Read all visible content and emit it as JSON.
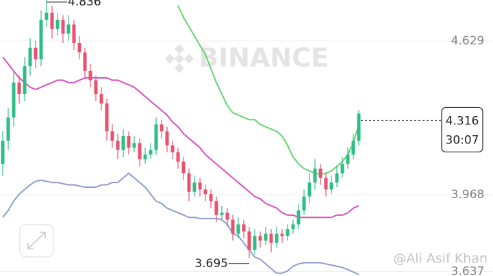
{
  "chart_data": {
    "type": "candlestick",
    "watermark": "BINANCE",
    "credit": "@Ali Asif Khan",
    "countdown": "30:07",
    "up_color": "#2ebd85",
    "down_color": "#e8526d",
    "ylim": [
      3.618,
      4.805
    ],
    "yticks": [
      4.629,
      3.968,
      3.637
    ],
    "grid": true,
    "open": [
      4.1,
      4.2,
      4.3,
      4.45,
      4.4,
      4.52,
      4.6,
      4.55,
      4.72,
      4.75,
      4.68,
      4.72,
      4.66,
      4.7,
      4.62,
      4.58,
      4.5,
      4.46,
      4.4,
      4.36,
      4.24,
      4.2,
      4.16,
      4.22,
      4.17,
      4.19,
      4.12,
      4.14,
      4.16,
      4.27,
      4.24,
      4.18,
      4.15,
      4.11,
      4.06,
      3.98,
      4.02,
      3.99,
      3.97,
      3.94,
      3.88,
      3.89,
      3.86,
      3.8,
      3.84,
      3.81,
      3.73,
      3.79,
      3.77,
      3.8,
      3.76,
      3.8,
      3.79,
      3.82,
      3.84,
      3.9,
      3.96,
      4.02,
      4.08,
      4.04,
      3.99,
      4.02,
      4.06,
      4.1,
      4.14,
      4.2
    ],
    "high": [
      4.24,
      4.34,
      4.5,
      4.48,
      4.56,
      4.64,
      4.63,
      4.76,
      4.836,
      4.78,
      4.75,
      4.74,
      4.74,
      4.72,
      4.65,
      4.6,
      4.53,
      4.48,
      4.43,
      4.38,
      4.27,
      4.23,
      4.25,
      4.24,
      4.22,
      4.21,
      4.17,
      4.19,
      4.3,
      4.29,
      4.26,
      4.2,
      4.17,
      4.13,
      4.08,
      4.05,
      4.04,
      4.01,
      3.99,
      3.96,
      3.92,
      3.91,
      3.88,
      3.87,
      3.86,
      3.83,
      3.82,
      3.81,
      3.83,
      3.82,
      3.83,
      3.82,
      3.84,
      3.86,
      3.93,
      3.99,
      4.06,
      4.12,
      4.1,
      4.06,
      4.05,
      4.09,
      4.13,
      4.17,
      4.23,
      4.33
    ],
    "low": [
      4.05,
      4.16,
      4.26,
      4.36,
      4.37,
      4.48,
      4.51,
      4.52,
      4.69,
      4.64,
      4.65,
      4.62,
      4.63,
      4.59,
      4.55,
      4.47,
      4.43,
      4.37,
      4.33,
      4.2,
      4.17,
      4.12,
      4.13,
      4.14,
      4.15,
      4.09,
      4.1,
      4.12,
      4.14,
      4.21,
      4.15,
      4.12,
      4.08,
      4.03,
      3.94,
      3.96,
      3.96,
      3.94,
      3.91,
      3.85,
      3.86,
      3.83,
      3.77,
      3.78,
      3.78,
      3.695,
      3.71,
      3.74,
      3.75,
      3.72,
      3.74,
      3.76,
      3.77,
      3.8,
      3.82,
      3.88,
      3.93,
      3.99,
      4.01,
      3.96,
      3.97,
      4.0,
      4.04,
      4.08,
      4.12,
      4.18
    ],
    "close": [
      4.2,
      4.3,
      4.45,
      4.4,
      4.52,
      4.6,
      4.55,
      4.72,
      4.75,
      4.68,
      4.72,
      4.66,
      4.7,
      4.62,
      4.58,
      4.5,
      4.46,
      4.4,
      4.36,
      4.24,
      4.2,
      4.16,
      4.22,
      4.17,
      4.19,
      4.12,
      4.14,
      4.16,
      4.27,
      4.24,
      4.18,
      4.15,
      4.11,
      4.06,
      3.98,
      4.02,
      3.99,
      3.97,
      3.94,
      3.88,
      3.89,
      3.86,
      3.8,
      3.84,
      3.81,
      3.73,
      3.79,
      3.77,
      3.8,
      3.76,
      3.8,
      3.79,
      3.82,
      3.84,
      3.9,
      3.96,
      4.02,
      4.08,
      4.04,
      3.99,
      4.02,
      4.06,
      4.1,
      4.14,
      4.2,
      4.316
    ],
    "lines": [
      {
        "color": "#5fd66a",
        "values": [
          null,
          null,
          null,
          null,
          null,
          null,
          null,
          null,
          null,
          null,
          null,
          null,
          null,
          null,
          null,
          null,
          null,
          null,
          null,
          null,
          null,
          null,
          null,
          null,
          null,
          null,
          null,
          null,
          null,
          null,
          null,
          null,
          4.78,
          4.73,
          4.69,
          4.65,
          4.61,
          4.57,
          4.51,
          4.45,
          4.4,
          4.35,
          4.32,
          4.31,
          4.3,
          4.29,
          4.29,
          4.27,
          4.26,
          4.25,
          4.24,
          4.22,
          4.18,
          4.13,
          4.1,
          4.08,
          4.07,
          4.06,
          4.055,
          4.06,
          4.07,
          4.09,
          4.11,
          4.14,
          4.19,
          4.27
        ]
      },
      {
        "color": "#d94fbf",
        "values": [
          4.56,
          4.53,
          4.5,
          4.47,
          4.45,
          4.43,
          4.42,
          4.43,
          4.44,
          4.45,
          4.46,
          4.46,
          4.45,
          4.45,
          4.46,
          4.47,
          4.47,
          4.47,
          4.47,
          4.47,
          4.46,
          4.46,
          4.45,
          4.44,
          4.43,
          4.41,
          4.39,
          4.37,
          4.35,
          4.33,
          4.31,
          4.28,
          4.26,
          4.23,
          4.21,
          4.19,
          4.17,
          4.14,
          4.12,
          4.1,
          4.08,
          4.06,
          4.04,
          4.02,
          4.0,
          3.98,
          3.96,
          3.95,
          3.93,
          3.92,
          3.91,
          3.89,
          3.88,
          3.88,
          3.87,
          3.87,
          3.87,
          3.87,
          3.87,
          3.87,
          3.87,
          3.88,
          3.88,
          3.89,
          3.91,
          3.92
        ]
      },
      {
        "color": "#8f9ccf",
        "values": [
          3.87,
          3.9,
          3.94,
          3.97,
          3.99,
          4.01,
          4.025,
          4.03,
          4.025,
          4.02,
          4.02,
          4.015,
          4.01,
          4.01,
          4.005,
          4.0,
          4.0,
          4.0,
          4.01,
          4.01,
          4.02,
          4.02,
          4.04,
          4.06,
          4.04,
          4.02,
          4.0,
          3.97,
          3.94,
          3.93,
          3.91,
          3.9,
          3.89,
          3.88,
          3.87,
          3.87,
          3.865,
          3.865,
          3.865,
          3.865,
          3.86,
          3.84,
          3.8,
          3.79,
          3.76,
          3.73,
          3.7,
          3.69,
          3.67,
          3.65,
          3.63,
          3.63,
          3.64,
          3.66,
          3.67,
          3.675,
          3.675,
          3.675,
          3.675,
          3.67,
          3.665,
          3.66,
          3.655,
          3.645,
          3.635,
          3.625
        ]
      }
    ]
  }
}
